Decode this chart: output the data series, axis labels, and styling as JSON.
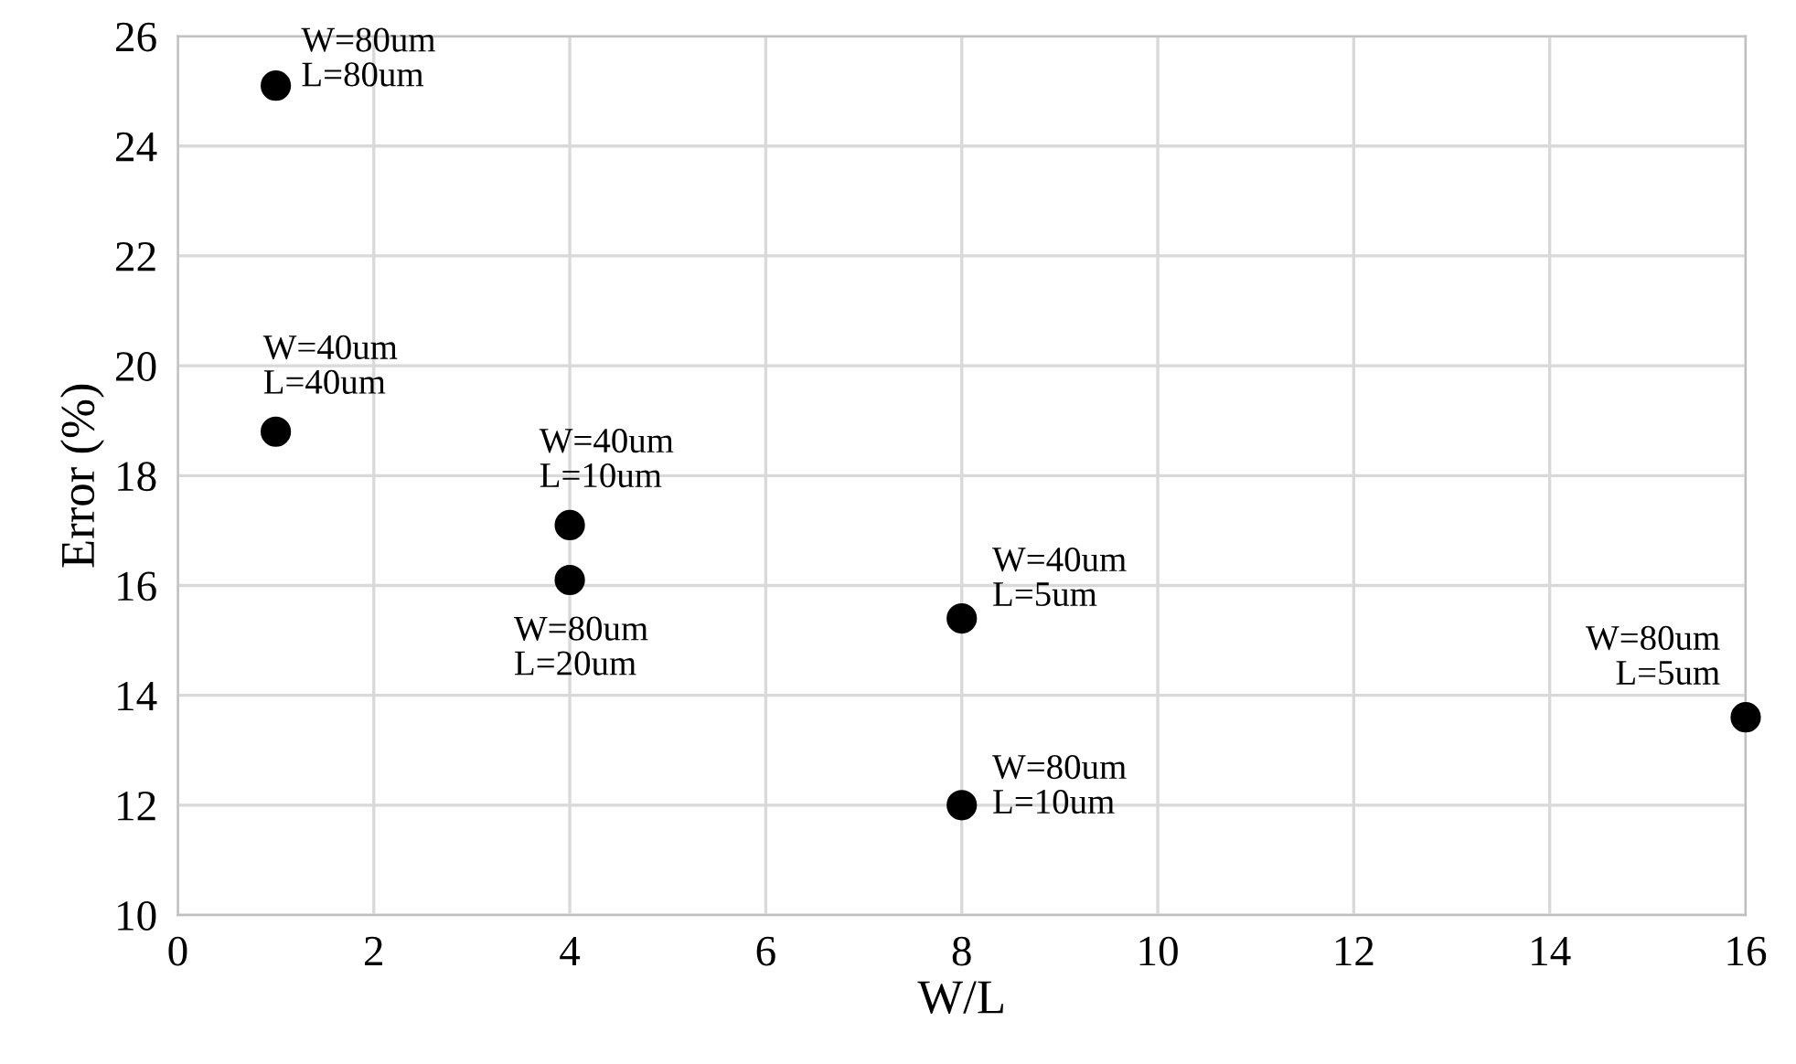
{
  "chart_data": {
    "type": "scatter",
    "xlabel": "W/L",
    "ylabel": "Error (%)",
    "x": [
      1,
      1,
      4,
      4,
      8,
      8,
      16
    ],
    "values": [
      25.1,
      18.8,
      17.1,
      16.1,
      15.4,
      12.0,
      13.6
    ],
    "color": "#000000",
    "marker": "circle",
    "grid": true,
    "legend": false,
    "xlim": [
      0,
      16
    ],
    "ylim": [
      10,
      26
    ],
    "xticks": [
      0,
      2,
      4,
      6,
      8,
      10,
      12,
      14,
      16
    ],
    "yticks": [
      10,
      12,
      14,
      16,
      18,
      20,
      22,
      24,
      26
    ],
    "annotations": [
      {
        "text": "W=80um\nL=80um",
        "x": 1,
        "y": 25.1
      },
      {
        "text": "W=40um\nL=40um",
        "x": 1,
        "y": 18.8
      },
      {
        "text": "W=40um\nL=10um",
        "x": 4,
        "y": 17.1
      },
      {
        "text": "W=80um\nL=20um",
        "x": 4,
        "y": 16.1
      },
      {
        "text": "W=40um\nL=5um",
        "x": 8,
        "y": 15.4
      },
      {
        "text": "W=80um\nL=10um",
        "x": 8,
        "y": 12.0
      },
      {
        "text": "W=80um\nL=5um",
        "x": 16,
        "y": 13.6
      }
    ]
  }
}
